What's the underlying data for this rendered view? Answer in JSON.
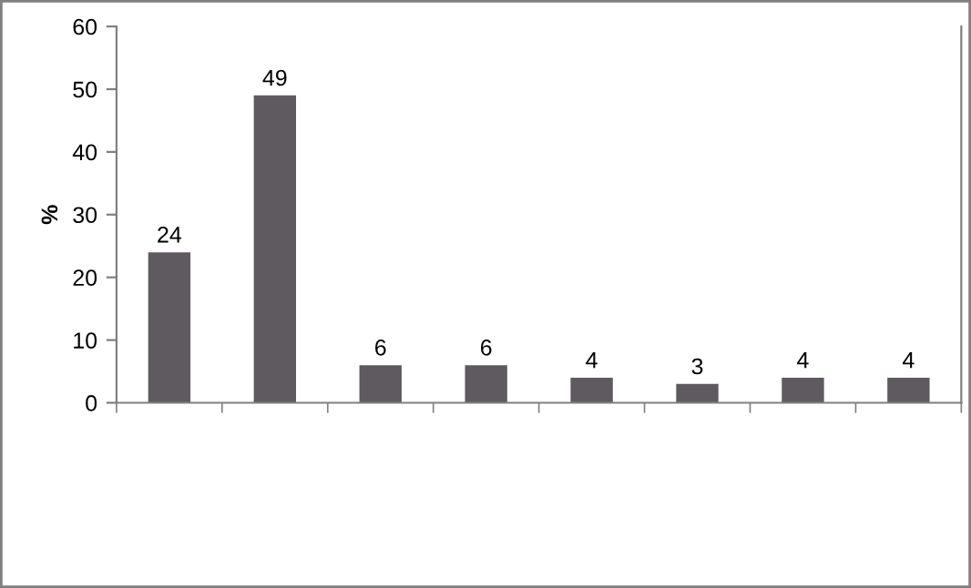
{
  "chart_data": {
    "type": "bar",
    "ylabel": "%",
    "categories": [
      null,
      null,
      null,
      null,
      null,
      null,
      null,
      null
    ],
    "values": [
      24,
      49,
      6,
      6,
      4,
      3,
      4,
      4
    ],
    "color": "#5f5a5f",
    "ylim": [
      0,
      60
    ],
    "yticks": [
      0,
      10,
      20,
      30,
      40,
      50,
      60
    ],
    "data_labels": true,
    "grid": false,
    "legend": false
  }
}
